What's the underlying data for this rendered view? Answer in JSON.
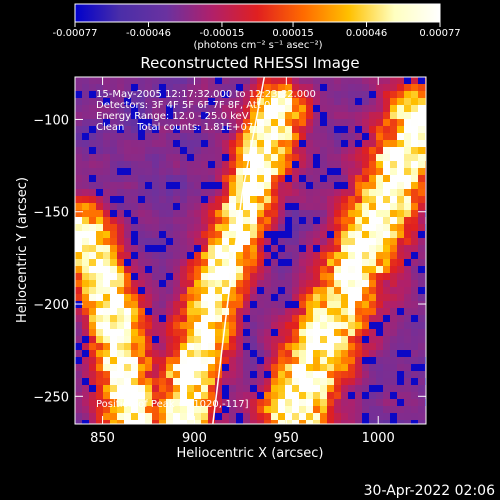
{
  "chart_data": {
    "type": "heatmap",
    "title": "Reconstructed RHESSI Image",
    "xlabel": "Heliocentric X (arcsec)",
    "ylabel": "Heliocentric Y (arcsec)",
    "xlim": [
      835,
      1026
    ],
    "ylim": [
      -265,
      -77
    ],
    "xticks": [
      850,
      900,
      950,
      1000
    ],
    "yticks": [
      -250,
      -200,
      -150,
      -100
    ],
    "colorbar": {
      "min": -0.00077,
      "max": 0.00077,
      "ticks": [
        -0.00077,
        -0.00046,
        -0.00015,
        0.00015,
        0.00046,
        0.00077
      ],
      "tick_labels": [
        "-0.00077",
        "-0.00046",
        "-0.00015",
        "0.00015",
        "0.00046",
        "0.00077"
      ],
      "unit_label": "(photons cm⁻² s⁻¹ asec⁻²)",
      "colors": [
        "#0000cc",
        "#4b2ea8",
        "#6a32a0",
        "#b0206a",
        "#e02020",
        "#ff6a00",
        "#ffc000",
        "#ffffc0",
        "#ffffff"
      ]
    },
    "limb_curve": [
      [
        938,
        -77
      ],
      [
        926,
        -140
      ],
      [
        918,
        -200
      ],
      [
        910,
        -265
      ]
    ],
    "bright_ridges": [
      {
        "points": [
          [
            946,
            -95
          ],
          [
            930,
            -140
          ],
          [
            912,
            -190
          ],
          [
            898,
            -240
          ],
          [
            895,
            -262
          ]
        ],
        "width": 18
      },
      {
        "points": [
          [
            1022,
            -100
          ],
          [
            1002,
            -150
          ],
          [
            985,
            -190
          ],
          [
            968,
            -225
          ],
          [
            955,
            -258
          ]
        ],
        "width": 22
      },
      {
        "points": [
          [
            838,
            -160
          ],
          [
            855,
            -200
          ],
          [
            862,
            -235
          ],
          [
            866,
            -262
          ]
        ],
        "width": 18
      }
    ],
    "annotations": [
      "15-May-2005 12:17:32.000 to 12:23:32.000",
      "Detectors: 3F 4F 5F 6F 7F 8F, Att 0",
      "Energy Range: 12.0 - 25.0 keV",
      "Clean    Total counts: 1.81E+07",
      "Position of Peak = [1020,-117]"
    ]
  },
  "footer": {
    "timestamp": "30-Apr-2022 02:06"
  }
}
